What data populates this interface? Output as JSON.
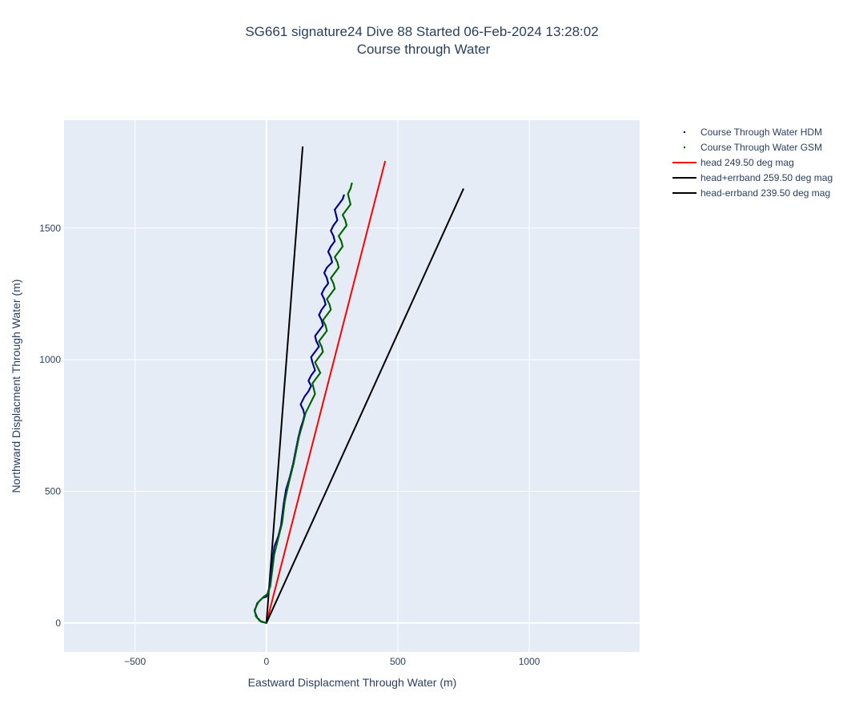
{
  "title_line1": "SG661 signature24 Dive 88 Started 06-Feb-2024 13:28:02",
  "title_line2": "Course through Water",
  "chart_data": {
    "type": "scatter",
    "xlabel": "Eastward Displacment Through Water (m)",
    "ylabel": "Northward Displacment Through Water (m)",
    "xlim": [
      -770,
      1420
    ],
    "ylim": [
      -110,
      1910
    ],
    "xticks": [
      -500,
      0,
      500,
      1000
    ],
    "xtick_labels": [
      "−500",
      "0",
      "500",
      "1000"
    ],
    "yticks": [
      0,
      500,
      1000,
      1500
    ],
    "ytick_labels": [
      "0",
      "500",
      "1000",
      "1500"
    ],
    "grid": true,
    "legend_position": "right",
    "colors": {
      "plot_bg": "#e5ecf6",
      "grid": "#ffffff",
      "hdm": "#00008b",
      "gsm": "#006400",
      "head": "#ff0000",
      "errband": "#000000"
    },
    "series": [
      {
        "name": "Course Through Water HDM",
        "mode": "markers",
        "color": "#00008b",
        "points": [
          [
            0,
            0
          ],
          [
            -20,
            5
          ],
          [
            -35,
            20
          ],
          [
            -45,
            45
          ],
          [
            -35,
            75
          ],
          [
            -15,
            95
          ],
          [
            0,
            100
          ],
          [
            10,
            130
          ],
          [
            15,
            170
          ],
          [
            20,
            210
          ],
          [
            25,
            250
          ],
          [
            30,
            290
          ],
          [
            45,
            330
          ],
          [
            55,
            370
          ],
          [
            60,
            410
          ],
          [
            65,
            450
          ],
          [
            70,
            480
          ],
          [
            75,
            510
          ],
          [
            90,
            560
          ],
          [
            100,
            600
          ],
          [
            110,
            650
          ],
          [
            120,
            700
          ],
          [
            130,
            740
          ],
          [
            140,
            770
          ],
          [
            145,
            790
          ],
          [
            140,
            810
          ],
          [
            130,
            830
          ],
          [
            145,
            860
          ],
          [
            160,
            880
          ],
          [
            170,
            900
          ],
          [
            160,
            920
          ],
          [
            170,
            940
          ],
          [
            185,
            960
          ],
          [
            175,
            990
          ],
          [
            170,
            1010
          ],
          [
            185,
            1030
          ],
          [
            200,
            1050
          ],
          [
            190,
            1070
          ],
          [
            185,
            1090
          ],
          [
            200,
            1110
          ],
          [
            215,
            1130
          ],
          [
            210,
            1150
          ],
          [
            200,
            1170
          ],
          [
            210,
            1190
          ],
          [
            225,
            1210
          ],
          [
            220,
            1230
          ],
          [
            210,
            1250
          ],
          [
            220,
            1270
          ],
          [
            235,
            1290
          ],
          [
            230,
            1310
          ],
          [
            220,
            1330
          ],
          [
            230,
            1350
          ],
          [
            250,
            1370
          ],
          [
            245,
            1390
          ],
          [
            235,
            1410
          ],
          [
            245,
            1430
          ],
          [
            260,
            1450
          ],
          [
            255,
            1470
          ],
          [
            245,
            1490
          ],
          [
            255,
            1510
          ],
          [
            270,
            1530
          ],
          [
            265,
            1550
          ],
          [
            260,
            1570
          ],
          [
            275,
            1590
          ],
          [
            290,
            1610
          ],
          [
            295,
            1625
          ]
        ]
      },
      {
        "name": "Course Through Water GSM",
        "mode": "markers",
        "color": "#006400",
        "points": [
          [
            0,
            0
          ],
          [
            -25,
            8
          ],
          [
            -40,
            25
          ],
          [
            -45,
            50
          ],
          [
            -30,
            80
          ],
          [
            -10,
            100
          ],
          [
            5,
            110
          ],
          [
            15,
            140
          ],
          [
            20,
            180
          ],
          [
            25,
            220
          ],
          [
            30,
            260
          ],
          [
            40,
            300
          ],
          [
            50,
            340
          ],
          [
            60,
            380
          ],
          [
            65,
            420
          ],
          [
            70,
            460
          ],
          [
            78,
            500
          ],
          [
            85,
            530
          ],
          [
            95,
            570
          ],
          [
            105,
            610
          ],
          [
            115,
            660
          ],
          [
            125,
            710
          ],
          [
            138,
            755
          ],
          [
            150,
            800
          ],
          [
            165,
            830
          ],
          [
            175,
            850
          ],
          [
            185,
            870
          ],
          [
            180,
            890
          ],
          [
            175,
            910
          ],
          [
            190,
            930
          ],
          [
            205,
            950
          ],
          [
            195,
            970
          ],
          [
            185,
            990
          ],
          [
            200,
            1010
          ],
          [
            215,
            1030
          ],
          [
            210,
            1050
          ],
          [
            200,
            1070
          ],
          [
            215,
            1090
          ],
          [
            230,
            1110
          ],
          [
            225,
            1130
          ],
          [
            215,
            1150
          ],
          [
            230,
            1170
          ],
          [
            245,
            1190
          ],
          [
            240,
            1210
          ],
          [
            230,
            1230
          ],
          [
            245,
            1250
          ],
          [
            260,
            1270
          ],
          [
            255,
            1290
          ],
          [
            245,
            1310
          ],
          [
            260,
            1330
          ],
          [
            275,
            1350
          ],
          [
            270,
            1370
          ],
          [
            260,
            1390
          ],
          [
            275,
            1410
          ],
          [
            290,
            1430
          ],
          [
            285,
            1450
          ],
          [
            275,
            1470
          ],
          [
            290,
            1490
          ],
          [
            305,
            1510
          ],
          [
            300,
            1530
          ],
          [
            290,
            1550
          ],
          [
            305,
            1570
          ],
          [
            320,
            1590
          ],
          [
            315,
            1610
          ],
          [
            310,
            1630
          ],
          [
            320,
            1650
          ],
          [
            325,
            1670
          ]
        ]
      },
      {
        "name": "head 249.50 deg mag",
        "mode": "lines",
        "color": "#ff0000",
        "points": [
          [
            0,
            0
          ],
          [
            452,
            1755
          ]
        ]
      },
      {
        "name": "head+errband 259.50 deg mag",
        "mode": "lines",
        "color": "#000000",
        "points": [
          [
            0,
            0
          ],
          [
            138,
            1810
          ]
        ]
      },
      {
        "name": "head-errband 239.50 deg mag",
        "mode": "lines",
        "color": "#000000",
        "points": [
          [
            0,
            0
          ],
          [
            750,
            1650
          ]
        ]
      }
    ]
  }
}
